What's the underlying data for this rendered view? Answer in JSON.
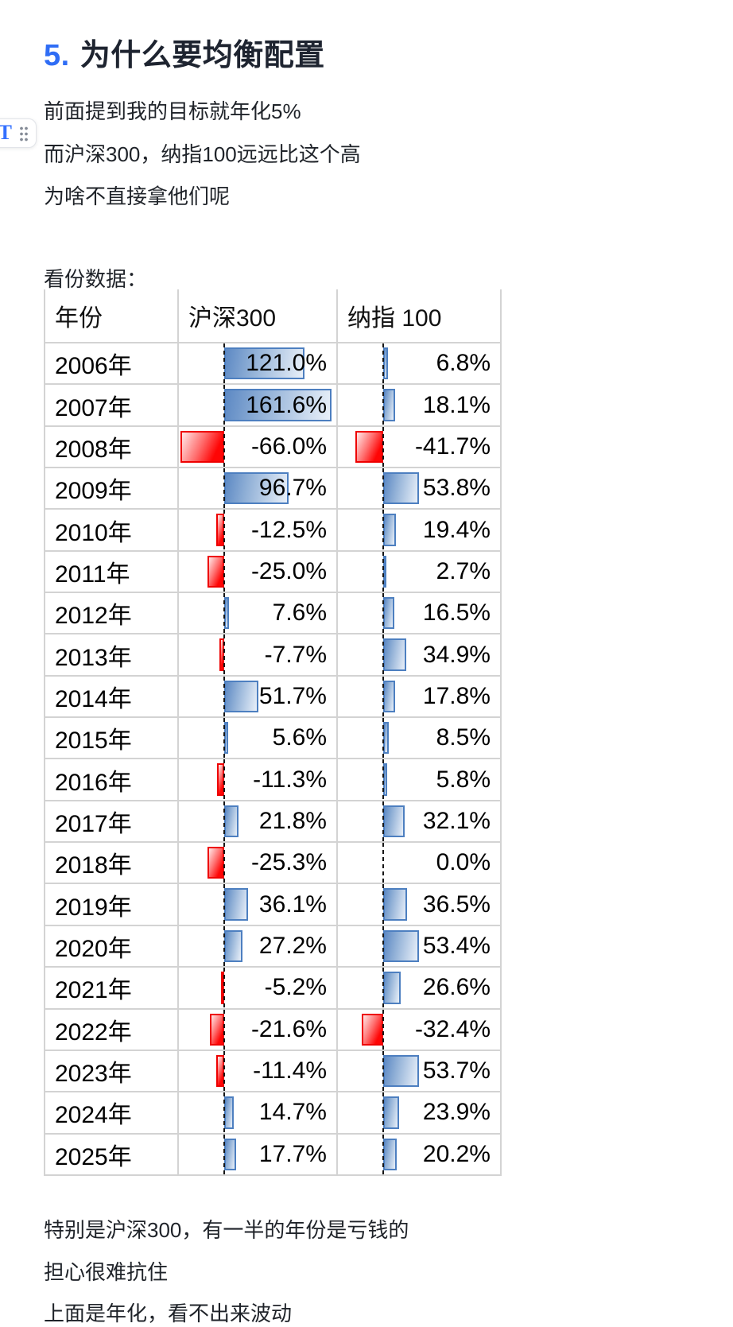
{
  "heading": {
    "number": "5.",
    "text": "为什么要均衡配置",
    "number_color": "#2f6df5"
  },
  "paragraphs_top": [
    "前面提到我的目标就年化5%",
    "而沪深300，纳指100远远比这个高",
    "为啥不直接拿他们呢",
    "看份数据："
  ],
  "editor": {
    "block_icon": "T",
    "drag_handle_icon": "six-dots-drag-handle"
  },
  "chart_data": {
    "type": "table",
    "columns": [
      "年份",
      "沪深300",
      "纳指 100"
    ],
    "years": [
      "2006年",
      "2007年",
      "2008年",
      "2009年",
      "2010年",
      "2011年",
      "2012年",
      "2013年",
      "2014年",
      "2015年",
      "2016年",
      "2017年",
      "2018年",
      "2019年",
      "2020年",
      "2021年",
      "2022年",
      "2023年",
      "2024年",
      "2025年"
    ],
    "series": [
      {
        "name": "沪深300",
        "values": [
          121.0,
          161.6,
          -66.0,
          96.7,
          -12.5,
          -25.0,
          7.6,
          -7.7,
          51.7,
          5.6,
          -11.3,
          21.8,
          -25.3,
          36.1,
          27.2,
          -5.2,
          -21.6,
          -11.4,
          14.7,
          17.7
        ]
      },
      {
        "name": "纳指 100",
        "values": [
          6.8,
          18.1,
          -41.7,
          53.8,
          19.4,
          2.7,
          16.5,
          34.9,
          17.8,
          8.5,
          5.8,
          32.1,
          0.0,
          36.5,
          53.4,
          26.6,
          -32.4,
          53.7,
          23.9,
          20.2
        ]
      }
    ],
    "value_format": "signed one-decimal percent, e.g. -66.0%",
    "databars": {
      "style": "excel-style in-cell data bars with dashed black vertical axis",
      "positive_border": "#4d7fc0",
      "positive_fill": "blue gradient fading right",
      "negative_border": "#ee0000",
      "negative_fill": "red gradient, solid at axis",
      "scale_min": -66.0,
      "scale_max": 161.6
    }
  },
  "paragraphs_bottom": [
    "特别是沪深300，有一半的年份是亏钱的",
    "担心很难抗住",
    "上面是年化，看不出来波动"
  ],
  "colors": {
    "accent_blue": "#2f6df5",
    "icon_blue": "#3370ff",
    "table_border": "#d3d3d3",
    "text": "#1f2329"
  }
}
